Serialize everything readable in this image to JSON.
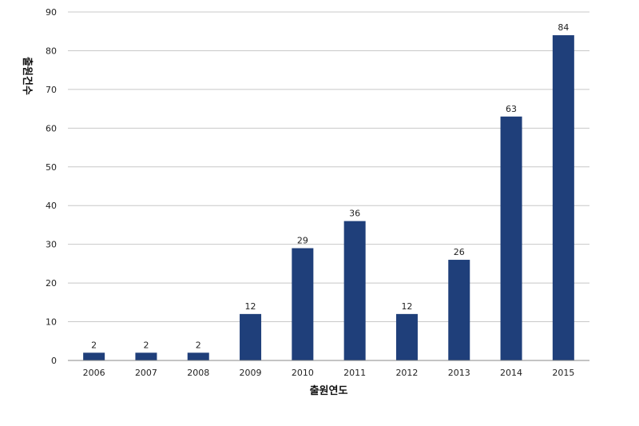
{
  "chart_data": {
    "type": "bar",
    "categories": [
      "2006",
      "2007",
      "2008",
      "2009",
      "2010",
      "2011",
      "2012",
      "2013",
      "2014",
      "2015"
    ],
    "values": [
      2,
      2,
      2,
      12,
      29,
      36,
      12,
      26,
      63,
      84
    ],
    "xlabel": "출원연도",
    "ylabel": "출원건수",
    "ylim": [
      0,
      90
    ],
    "yticks": [
      0,
      10,
      20,
      30,
      40,
      50,
      60,
      70,
      80,
      90
    ],
    "grid": true,
    "data_labels": true,
    "bar_color": "#1f3f7a"
  }
}
